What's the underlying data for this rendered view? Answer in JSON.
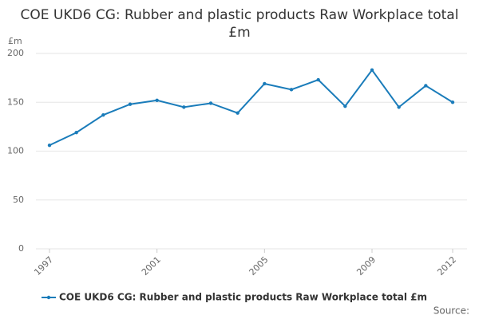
{
  "chart_data": {
    "type": "line",
    "title": "COE UKD6 CG: Rubber and plastic products Raw Workplace total £m",
    "y_label": "£m",
    "source": "Source:",
    "x": [
      1997,
      1998,
      1999,
      2000,
      2001,
      2002,
      2003,
      2004,
      2005,
      2006,
      2007,
      2008,
      2009,
      2010,
      2011,
      2012
    ],
    "xlim": [
      1997,
      2012
    ],
    "xticks": [
      1997,
      2001,
      2005,
      2009,
      2012
    ],
    "ylim": [
      0,
      200
    ],
    "yticks": [
      0,
      50,
      100,
      150,
      200
    ],
    "grid": true,
    "legend": "bottom",
    "series": [
      {
        "name": "COE UKD6 CG: Rubber and plastic products Raw Workplace total £m",
        "color": "#1a7cba",
        "values": [
          106,
          119,
          137,
          148,
          152,
          145,
          149,
          139,
          169,
          163,
          173,
          146,
          183,
          145,
          167,
          150
        ]
      }
    ]
  }
}
